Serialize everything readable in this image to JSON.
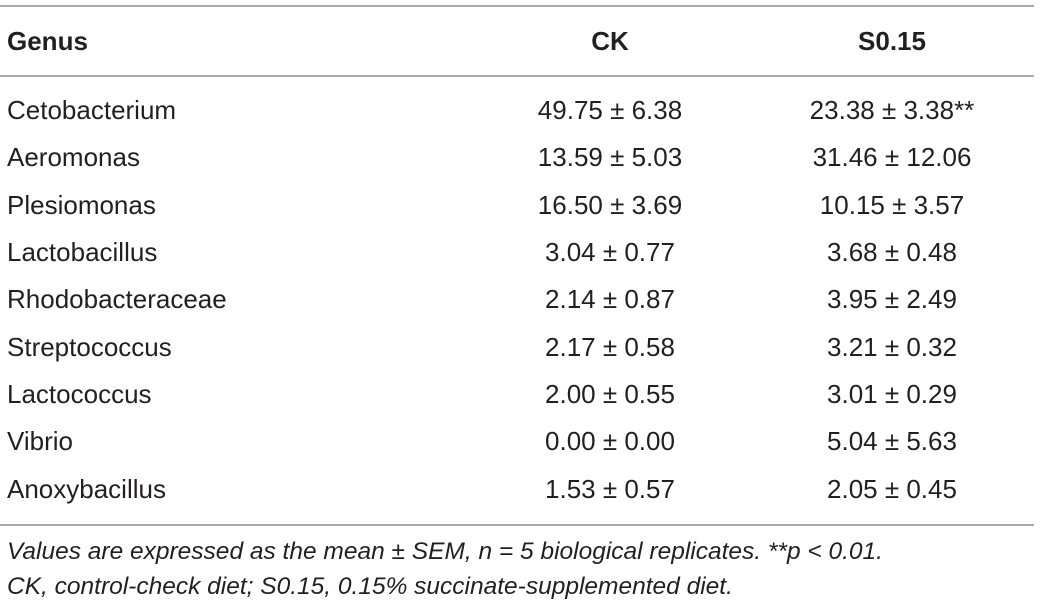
{
  "table": {
    "headers": {
      "genus": "Genus",
      "ck": "CK",
      "s015": "S0.15"
    },
    "rows": [
      {
        "genus": "Cetobacterium",
        "ck": "49.75 ± 6.38",
        "s015": "23.38 ± 3.38",
        "s015_sig": "**"
      },
      {
        "genus": "Aeromonas",
        "ck": "13.59 ± 5.03",
        "s015": "31.46 ± 12.06",
        "s015_sig": ""
      },
      {
        "genus": "Plesiomonas",
        "ck": "16.50 ± 3.69",
        "s015": "10.15 ± 3.57",
        "s015_sig": ""
      },
      {
        "genus": "Lactobacillus",
        "ck": "3.04 ± 0.77",
        "s015": "3.68 ± 0.48",
        "s015_sig": ""
      },
      {
        "genus": "Rhodobacteraceae",
        "ck": "2.14 ± 0.87",
        "s015": "3.95 ± 2.49",
        "s015_sig": ""
      },
      {
        "genus": "Streptococcus",
        "ck": "2.17 ± 0.58",
        "s015": "3.21 ± 0.32",
        "s015_sig": ""
      },
      {
        "genus": "Lactococcus",
        "ck": "2.00 ± 0.55",
        "s015": "3.01 ± 0.29",
        "s015_sig": ""
      },
      {
        "genus": "Vibrio",
        "ck": "0.00 ± 0.00",
        "s015": "5.04 ± 5.63",
        "s015_sig": ""
      },
      {
        "genus": "Anoxybacillus",
        "ck": "1.53 ± 0.57",
        "s015": "2.05 ± 0.45",
        "s015_sig": ""
      }
    ]
  },
  "footnote": {
    "line1": "Values are expressed as the mean ± SEM, n = 5 biological replicates. **p < 0.01.",
    "line2": "CK, control-check diet; S0.15, 0.15% succinate-supplemented diet."
  },
  "colors": {
    "text": "#231f20",
    "rule": "#a7a9ac"
  }
}
